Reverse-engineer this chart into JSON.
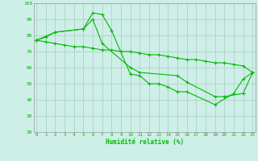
{
  "series": {
    "s1_x": [
      0,
      1,
      2,
      5,
      6,
      7,
      8,
      10,
      11,
      12,
      13,
      14,
      15,
      16,
      19,
      21,
      22,
      23
    ],
    "s1_y": [
      77,
      79,
      82,
      84,
      94,
      93,
      83,
      56,
      55,
      50,
      50,
      48,
      45,
      45,
      37,
      44,
      53,
      57
    ],
    "s2_x": [
      0,
      2,
      5,
      6,
      7,
      10,
      11,
      15,
      16,
      19,
      20,
      22,
      23
    ],
    "s2_y": [
      77,
      82,
      84,
      90,
      75,
      60,
      57,
      55,
      51,
      42,
      42,
      44,
      57
    ],
    "s3_x": [
      0,
      1,
      2,
      3,
      4,
      5,
      6,
      7,
      8,
      9,
      10,
      11,
      12,
      13,
      14,
      15,
      16,
      17,
      18,
      19,
      20,
      21,
      22,
      23
    ],
    "s3_y": [
      77,
      76,
      75,
      74,
      73,
      73,
      72,
      71,
      71,
      70,
      70,
      69,
      68,
      68,
      67,
      66,
      65,
      65,
      64,
      63,
      63,
      62,
      61,
      57
    ]
  },
  "xlim": [
    -0.3,
    23.3
  ],
  "ylim": [
    20,
    100
  ],
  "yticks": [
    20,
    30,
    40,
    50,
    60,
    70,
    80,
    90,
    100
  ],
  "xticks": [
    0,
    1,
    2,
    3,
    4,
    5,
    6,
    7,
    8,
    9,
    10,
    11,
    12,
    13,
    14,
    15,
    16,
    17,
    18,
    19,
    20,
    21,
    22,
    23
  ],
  "xlabel": "Humidité relative (%)",
  "line_color": "#00bb00",
  "bg_color": "#ceeee8",
  "grid_color": "#aaccbb",
  "markersize": 2.5,
  "linewidth": 0.8
}
